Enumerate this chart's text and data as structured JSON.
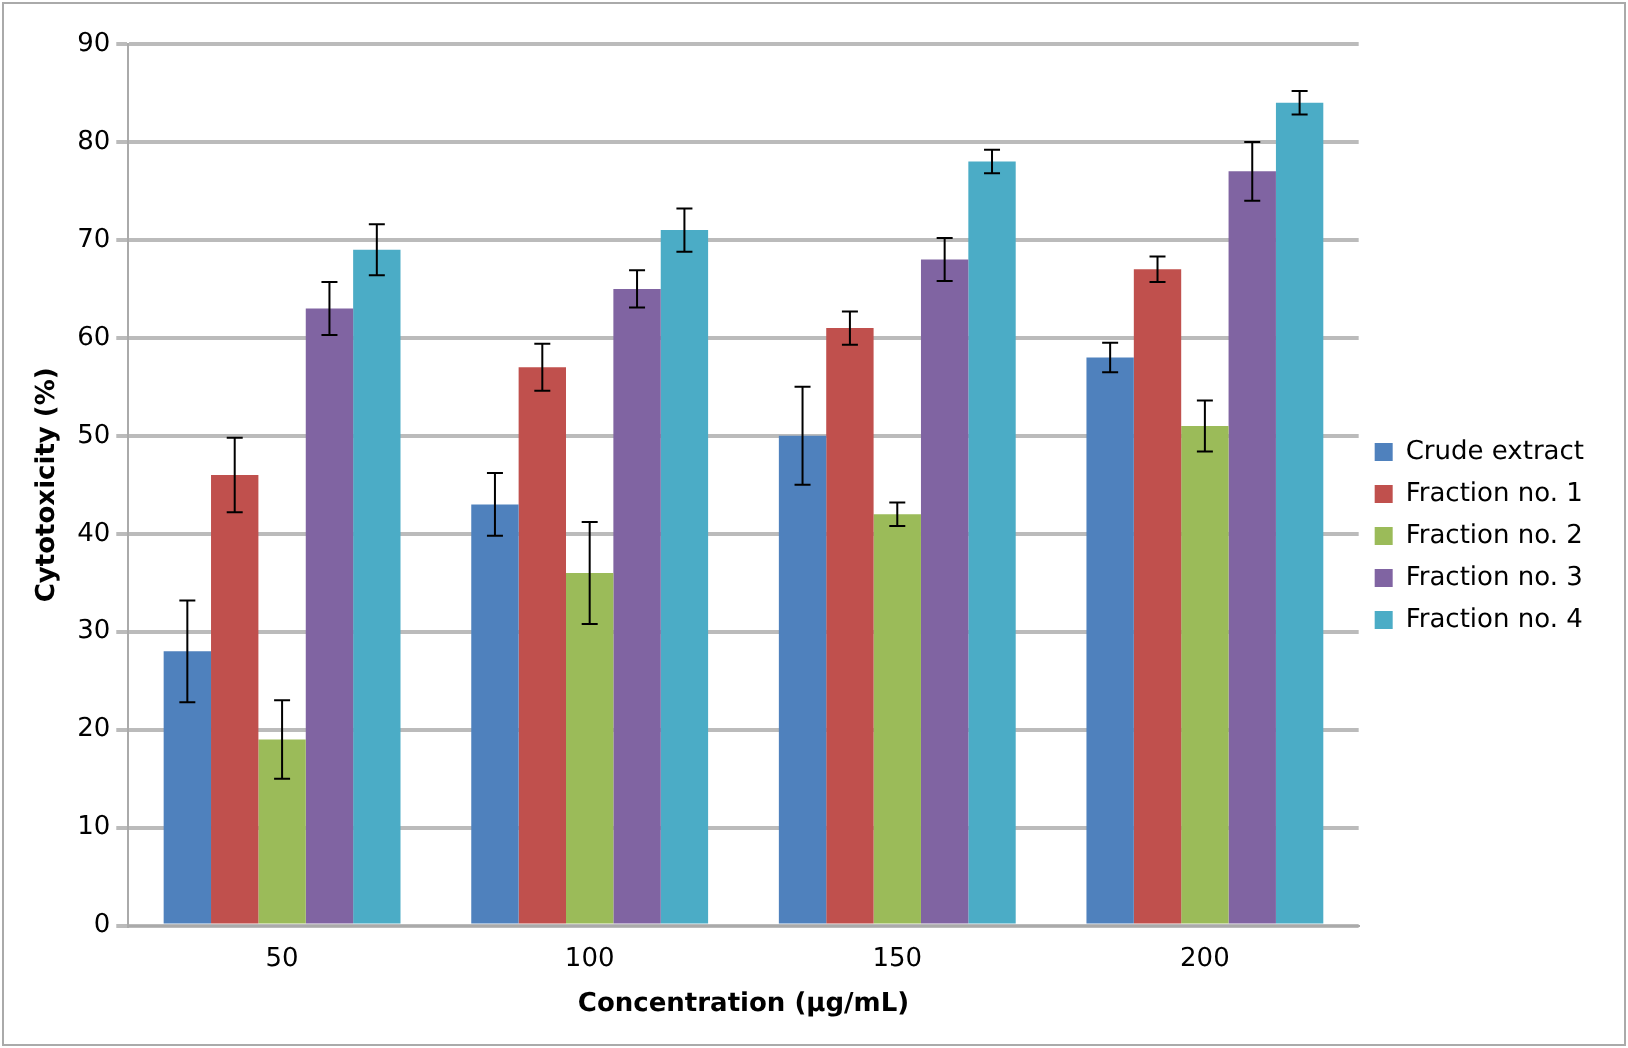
{
  "chart_data": {
    "type": "bar",
    "xlabel": "Concentration (µg/mL)",
    "ylabel": "Cytotoxicity (%)",
    "categories": [
      "50",
      "100",
      "150",
      "200"
    ],
    "series": [
      {
        "name": "Crude extract",
        "color": "#4f81bd",
        "values": [
          28,
          43,
          50,
          58
        ],
        "errors": [
          5.2,
          3.2,
          5,
          1.5
        ]
      },
      {
        "name": "Fraction no. 1",
        "color": "#c0504d",
        "values": [
          46,
          57,
          61,
          67
        ],
        "errors": [
          3.8,
          2.4,
          1.7,
          1.3
        ]
      },
      {
        "name": "Fraction no. 2",
        "color": "#9bbb59",
        "values": [
          19,
          36,
          42,
          51
        ],
        "errors": [
          4,
          5.2,
          1.2,
          2.6
        ]
      },
      {
        "name": "Fraction no. 3",
        "color": "#8064a2",
        "values": [
          63,
          65,
          68,
          77
        ],
        "errors": [
          2.7,
          1.9,
          2.2,
          3
        ]
      },
      {
        "name": "Fraction no. 4",
        "color": "#4bacc6",
        "values": [
          69,
          71,
          78,
          84
        ],
        "errors": [
          2.6,
          2.2,
          1.2,
          1.2
        ]
      }
    ],
    "ylim": [
      0,
      90
    ],
    "yticks": [
      0,
      10,
      20,
      30,
      40,
      50,
      60,
      70,
      80,
      90
    ],
    "grid": "y",
    "legend": "right"
  }
}
